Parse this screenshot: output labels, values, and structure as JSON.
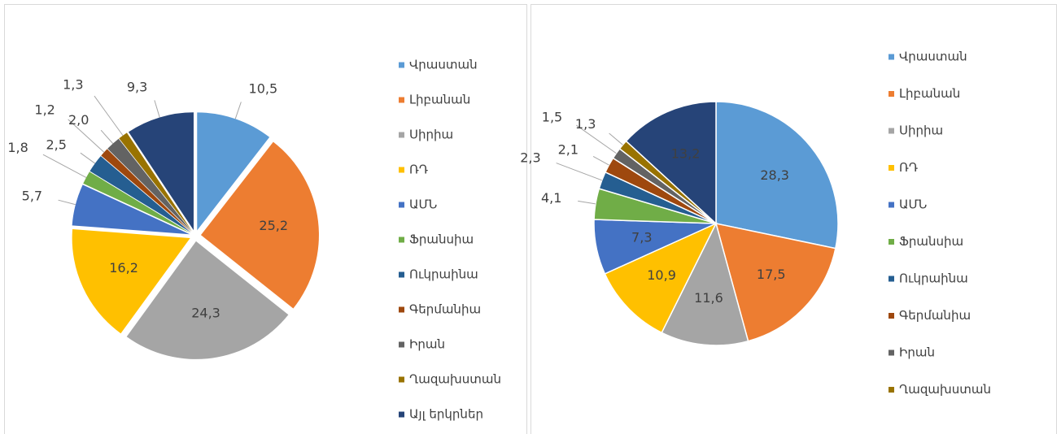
{
  "chart_data": [
    {
      "type": "pie",
      "explode": true,
      "categories": [
        "Վրաստան",
        "Լիբանան",
        "Սիրիա",
        "ՌԴ",
        "ԱՄՆ",
        "Ֆրանսիա",
        "Ուկրաինա",
        "Գերմանիա",
        "Իրան",
        "Ղազախստան",
        "Այլ երկրներ"
      ],
      "values": [
        10.5,
        25.2,
        24.3,
        16.2,
        5.7,
        1.8,
        2.5,
        1.2,
        2.0,
        1.3,
        9.3
      ],
      "value_labels": [
        "10,5",
        "25,2",
        "24,3",
        "16,2",
        "5,7",
        "1,8",
        "2,5",
        "1,2",
        "2,0",
        "1,3",
        "9,3"
      ],
      "colors": [
        "#5b9bd5",
        "#ed7d31",
        "#a5a5a5",
        "#ffc000",
        "#4472c4",
        "#70ad47",
        "#255e91",
        "#9e480e",
        "#636363",
        "#997300",
        "#264478"
      ],
      "legend": "right"
    },
    {
      "type": "pie",
      "explode": false,
      "categories": [
        "Վրաստան",
        "Լիբանան",
        "Սիրիա",
        "ՌԴ",
        "ԱՄՆ",
        "Ֆրանսիա",
        "Ուկրաինա",
        "Գերմանիա",
        "Իրան",
        "Ղազախստան",
        null
      ],
      "values": [
        28.3,
        17.5,
        11.6,
        10.9,
        7.3,
        4.1,
        2.3,
        2.1,
        1.5,
        1.3,
        13.2
      ],
      "value_labels": [
        "28,3",
        "17,5",
        "11,6",
        "10,9",
        "7,3",
        "4,1",
        "2,3",
        "2,1",
        "1,5",
        "1,3",
        "13,2"
      ],
      "colors": [
        "#5b9bd5",
        "#ed7d31",
        "#a5a5a5",
        "#ffc000",
        "#4472c4",
        "#70ad47",
        "#255e91",
        "#9e480e",
        "#636363",
        "#997300",
        "#264478"
      ],
      "legend": "right"
    }
  ]
}
